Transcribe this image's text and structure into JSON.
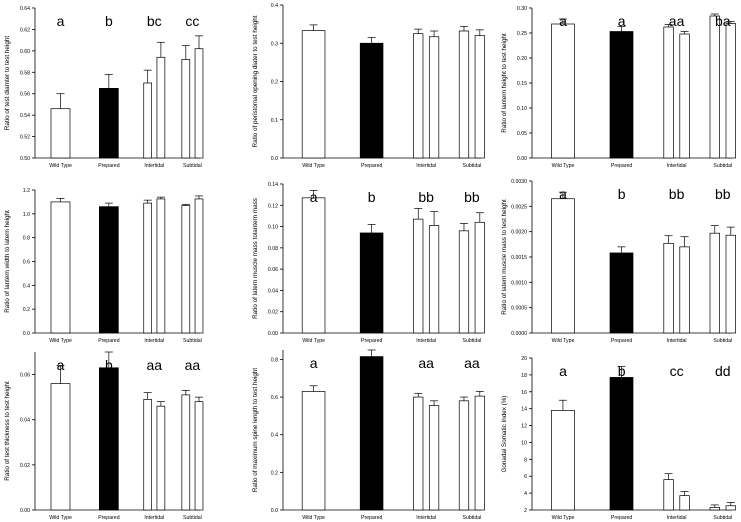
{
  "categories": [
    "Wild Type",
    "Prepared",
    "Intertidal",
    "Subtidal"
  ],
  "chart_data": [
    {
      "type": "bar",
      "ylabel": "Ratio of test diamter to test height",
      "ylim": [
        0.5,
        0.64
      ],
      "yticks": [
        "0.50",
        "0.52",
        "0.54",
        "0.56",
        "0.58",
        "0.60",
        "0.62",
        "0.64"
      ],
      "bars": [
        {
          "category": "Wild Type",
          "value": 0.546,
          "err": 0.014,
          "fill": "#ffffff"
        },
        {
          "category": "Prepared",
          "value": 0.565,
          "err": 0.013,
          "fill": "#000000"
        },
        {
          "category": "Intertidal",
          "value": 0.57,
          "err": 0.012,
          "fill": "#ffffff"
        },
        {
          "category": "Intertidal",
          "value": 0.594,
          "err": 0.014,
          "fill": "#ffffff"
        },
        {
          "category": "Subtidal",
          "value": 0.592,
          "err": 0.013,
          "fill": "#ffffff"
        },
        {
          "category": "Subtidal",
          "value": 0.602,
          "err": 0.012,
          "fill": "#ffffff"
        }
      ],
      "group_letters": [
        "a",
        "b",
        "bc",
        "cc"
      ]
    },
    {
      "type": "bar",
      "ylabel": "Ratio of peristomal opening diater to test height",
      "ylim": [
        0,
        0.4
      ],
      "yticks": [
        "0.0",
        "0.1",
        "0.2",
        "0.3",
        "0.4"
      ],
      "bars": [
        {
          "category": "Wild Type",
          "value": 0.333,
          "err": 0.015,
          "fill": "#ffffff"
        },
        {
          "category": "Prepared",
          "value": 0.3,
          "err": 0.015,
          "fill": "#000000"
        },
        {
          "category": "Intertidal",
          "value": 0.325,
          "err": 0.012,
          "fill": "#ffffff"
        },
        {
          "category": "Intertidal",
          "value": 0.317,
          "err": 0.015,
          "fill": "#ffffff"
        },
        {
          "category": "Subtidal",
          "value": 0.332,
          "err": 0.012,
          "fill": "#ffffff"
        },
        {
          "category": "Subtidal",
          "value": 0.32,
          "err": 0.015,
          "fill": "#ffffff"
        }
      ],
      "group_letters": []
    },
    {
      "type": "bar",
      "ylabel": "Ratio of lantern height to test height",
      "ylim": [
        0,
        0.3
      ],
      "yticks": [
        "0.00",
        "0.05",
        "0.10",
        "0.15",
        "0.20",
        "0.25",
        "0.30"
      ],
      "bars": [
        {
          "category": "Wild Type",
          "value": 0.268,
          "err": 0.01,
          "fill": "#ffffff"
        },
        {
          "category": "Prepared",
          "value": 0.253,
          "err": 0.01,
          "fill": "#000000"
        },
        {
          "category": "Intertidal",
          "value": 0.262,
          "err": 0.005,
          "fill": "#ffffff"
        },
        {
          "category": "Intertidal",
          "value": 0.248,
          "err": 0.005,
          "fill": "#ffffff"
        },
        {
          "category": "Subtidal",
          "value": 0.284,
          "err": 0.004,
          "fill": "#ffffff"
        },
        {
          "category": "Subtidal",
          "value": 0.269,
          "err": 0.004,
          "fill": "#ffffff"
        }
      ],
      "group_letters": [
        "a",
        "a",
        "aa",
        "ba"
      ]
    },
    {
      "type": "bar",
      "ylabel": "Ratio of lantern width to latern height",
      "ylim": [
        0,
        1.2
      ],
      "yticks": [
        "0.0",
        "0.2",
        "0.4",
        "0.6",
        "0.8",
        "1.0",
        "1.2"
      ],
      "bars": [
        {
          "category": "Wild Type",
          "value": 1.1,
          "err": 0.03,
          "fill": "#ffffff"
        },
        {
          "category": "Prepared",
          "value": 1.06,
          "err": 0.03,
          "fill": "#000000"
        },
        {
          "category": "Intertidal",
          "value": 1.09,
          "err": 0.025,
          "fill": "#ffffff"
        },
        {
          "category": "Intertidal",
          "value": 1.125,
          "err": 0.015,
          "fill": "#ffffff"
        },
        {
          "category": "Subtidal",
          "value": 1.07,
          "err": 0.01,
          "fill": "#ffffff"
        },
        {
          "category": "Subtidal",
          "value": 1.125,
          "err": 0.025,
          "fill": "#ffffff"
        }
      ],
      "group_letters": []
    },
    {
      "type": "bar",
      "ylabel": "Ratio of latern muscle mass tolantern mass",
      "ylim": [
        0,
        0.14
      ],
      "yticks": [
        "0.00",
        "0.02",
        "0.04",
        "0.06",
        "0.08",
        "0.10",
        "0.12",
        "0.14"
      ],
      "bars": [
        {
          "category": "Wild Type",
          "value": 0.127,
          "err": 0.007,
          "fill": "#ffffff"
        },
        {
          "category": "Prepared",
          "value": 0.094,
          "err": 0.008,
          "fill": "#000000"
        },
        {
          "category": "Intertidal",
          "value": 0.107,
          "err": 0.01,
          "fill": "#ffffff"
        },
        {
          "category": "Intertidal",
          "value": 0.101,
          "err": 0.013,
          "fill": "#ffffff"
        },
        {
          "category": "Subtidal",
          "value": 0.096,
          "err": 0.007,
          "fill": "#ffffff"
        },
        {
          "category": "Subtidal",
          "value": 0.104,
          "err": 0.009,
          "fill": "#ffffff"
        }
      ],
      "group_letters": [
        "a",
        "b",
        "bb",
        "bb"
      ]
    },
    {
      "type": "bar",
      "ylabel": "Ratio of latern muscle mass to test height",
      "ylim": [
        0,
        0.003
      ],
      "yticks": [
        "0.0000",
        "0.0005",
        "0.0010",
        "0.0015",
        "0.0020",
        "0.0025",
        "0.0030"
      ],
      "bars": [
        {
          "category": "Wild Type",
          "value": 0.00265,
          "err": 0.00013,
          "fill": "#ffffff"
        },
        {
          "category": "Prepared",
          "value": 0.00158,
          "err": 0.00012,
          "fill": "#000000"
        },
        {
          "category": "Intertidal",
          "value": 0.00177,
          "err": 0.00015,
          "fill": "#ffffff"
        },
        {
          "category": "Intertidal",
          "value": 0.0017,
          "err": 0.0002,
          "fill": "#ffffff"
        },
        {
          "category": "Subtidal",
          "value": 0.00197,
          "err": 0.00015,
          "fill": "#ffffff"
        },
        {
          "category": "Subtidal",
          "value": 0.00193,
          "err": 0.00016,
          "fill": "#ffffff"
        }
      ],
      "group_letters": [
        "a",
        "b",
        "bb",
        "bb"
      ]
    },
    {
      "type": "bar",
      "ylabel": "Ratio of test thickness to test height",
      "ylim": [
        0,
        0.07
      ],
      "yticks": [
        "0.00",
        "0.02",
        "0.04",
        "0.06"
      ],
      "bars": [
        {
          "category": "Wild Type",
          "value": 0.056,
          "err": 0.008,
          "fill": "#ffffff"
        },
        {
          "category": "Prepared",
          "value": 0.063,
          "err": 0.007,
          "fill": "#000000"
        },
        {
          "category": "Intertidal",
          "value": 0.049,
          "err": 0.003,
          "fill": "#ffffff"
        },
        {
          "category": "Intertidal",
          "value": 0.046,
          "err": 0.002,
          "fill": "#ffffff"
        },
        {
          "category": "Subtidal",
          "value": 0.051,
          "err": 0.002,
          "fill": "#ffffff"
        },
        {
          "category": "Subtidal",
          "value": 0.048,
          "err": 0.002,
          "fill": "#ffffff"
        }
      ],
      "group_letters": [
        "a",
        "b",
        "aa",
        "aa"
      ]
    },
    {
      "type": "bar",
      "ylabel": "Ratio of maximum spine length to test height",
      "ylim": [
        0,
        0.85
      ],
      "yticks": [
        "0.0",
        "0.2",
        "0.4",
        "0.6",
        "0.8"
      ],
      "bars": [
        {
          "category": "Wild Type",
          "value": 0.63,
          "err": 0.03,
          "fill": "#ffffff"
        },
        {
          "category": "Prepared",
          "value": 0.815,
          "err": 0.035,
          "fill": "#000000"
        },
        {
          "category": "Intertidal",
          "value": 0.6,
          "err": 0.02,
          "fill": "#ffffff"
        },
        {
          "category": "Intertidal",
          "value": 0.555,
          "err": 0.025,
          "fill": "#ffffff"
        },
        {
          "category": "Subtidal",
          "value": 0.58,
          "err": 0.02,
          "fill": "#ffffff"
        },
        {
          "category": "Subtidal",
          "value": 0.605,
          "err": 0.025,
          "fill": "#ffffff"
        }
      ],
      "group_letters": [
        "a",
        "b",
        "aa",
        "aa"
      ]
    },
    {
      "type": "bar",
      "ylabel": "Gonadal Somatic Index (%)",
      "ylim": [
        2,
        20
      ],
      "yticks": [
        "2",
        "4",
        "6",
        "8",
        "10",
        "12",
        "14",
        "16",
        "18",
        "20"
      ],
      "bars": [
        {
          "category": "Wild Type",
          "value": 13.8,
          "err": 1.2,
          "fill": "#ffffff"
        },
        {
          "category": "Prepared",
          "value": 17.7,
          "err": 1.3,
          "fill": "#000000"
        },
        {
          "category": "Intertidal",
          "value": 5.6,
          "err": 0.7,
          "fill": "#ffffff"
        },
        {
          "category": "Intertidal",
          "value": 3.7,
          "err": 0.5,
          "fill": "#ffffff"
        },
        {
          "category": "Subtidal",
          "value": 2.3,
          "err": 0.3,
          "fill": "#ffffff"
        },
        {
          "category": "Subtidal",
          "value": 2.5,
          "err": 0.4,
          "fill": "#ffffff"
        }
      ],
      "group_letters": [
        "a",
        "b",
        "cc",
        "dd"
      ]
    }
  ]
}
